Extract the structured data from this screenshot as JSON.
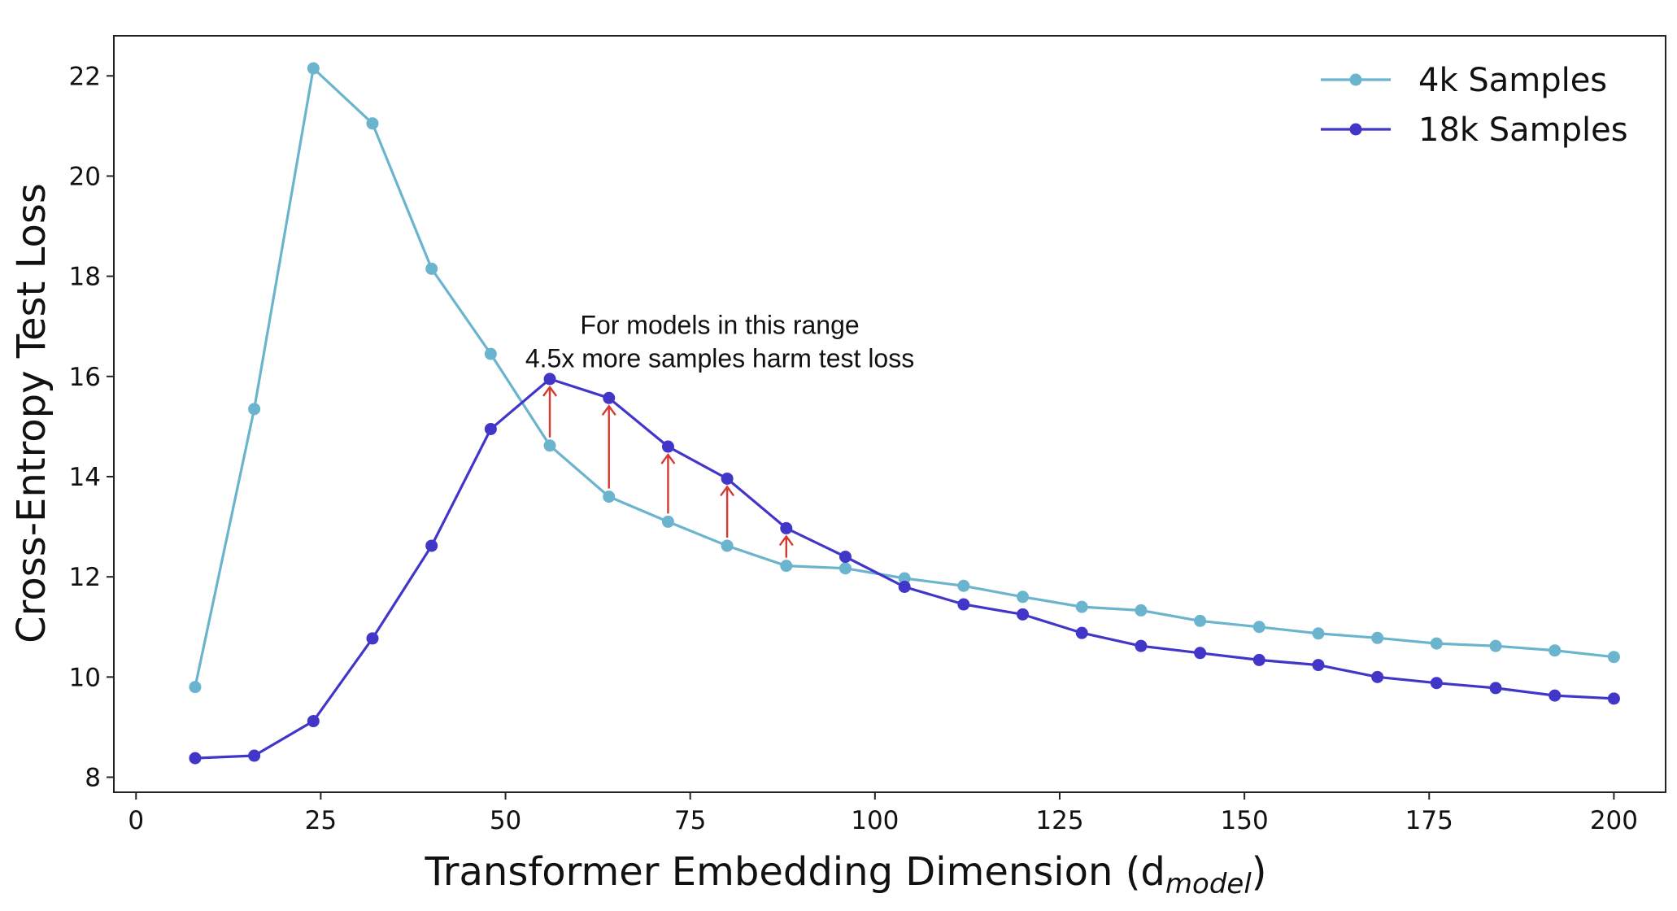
{
  "chart_data": {
    "type": "line",
    "title": "",
    "xlabel": "Transformer Embedding Dimension (d",
    "xlabel_sub": "model",
    "xlabel_close": ")",
    "ylabel": "Cross-Entropy Test Loss",
    "xlim": [
      -3,
      207
    ],
    "ylim": [
      7.7,
      22.8
    ],
    "xticks": [
      0,
      25,
      50,
      75,
      100,
      125,
      150,
      175,
      200
    ],
    "yticks": [
      8,
      10,
      12,
      14,
      16,
      18,
      20,
      22
    ],
    "grid": false,
    "legend_position": "top-right",
    "x": [
      8,
      16,
      24,
      32,
      40,
      48,
      56,
      64,
      72,
      80,
      88,
      96,
      104,
      112,
      120,
      128,
      136,
      144,
      152,
      160,
      168,
      176,
      184,
      192,
      200
    ],
    "series": [
      {
        "name": "4k Samples",
        "color": "#6ab4cd",
        "values": [
          9.8,
          15.35,
          22.15,
          21.05,
          18.15,
          16.45,
          14.62,
          13.6,
          13.1,
          12.62,
          12.22,
          12.17,
          11.97,
          11.82,
          11.6,
          11.4,
          11.33,
          11.12,
          11.0,
          10.87,
          10.78,
          10.67,
          10.62,
          10.53,
          10.4
        ]
      },
      {
        "name": "18k Samples",
        "color": "#4236c8",
        "values": [
          8.38,
          8.43,
          9.12,
          10.77,
          12.62,
          14.95,
          15.95,
          15.57,
          14.6,
          13.96,
          12.97,
          12.4,
          11.8,
          11.45,
          11.25,
          10.88,
          10.62,
          10.48,
          10.34,
          10.24,
          10.0,
          9.88,
          9.78,
          9.63,
          9.57
        ]
      }
    ],
    "arrows": {
      "color": "#d43a32",
      "points": [
        56,
        64,
        72,
        80,
        88
      ]
    },
    "annotation": {
      "lines": [
        "For models in this range",
        "4.5x more samples harm test loss"
      ],
      "x": 79,
      "y": 16.85
    }
  }
}
